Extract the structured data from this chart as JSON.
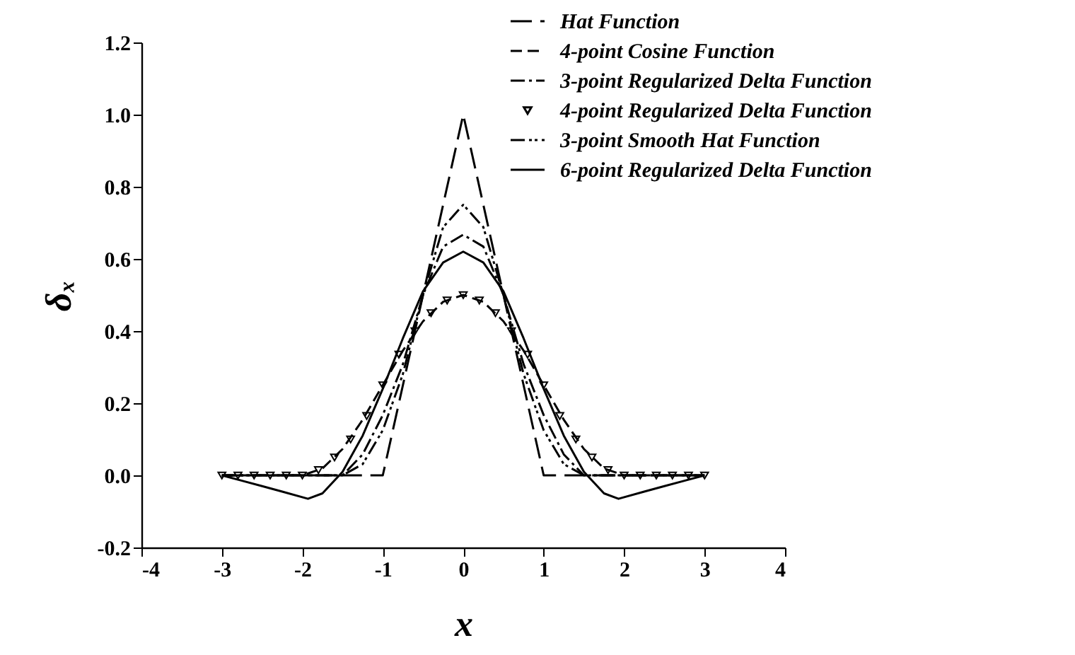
{
  "chart_data": {
    "type": "line",
    "xlabel": "x",
    "ylabel": "δₓ",
    "xlim": [
      -4,
      4
    ],
    "xticks": [
      -4,
      -3,
      -2,
      -1,
      0,
      1,
      2,
      3,
      4
    ],
    "ylim": [
      -0.2,
      1.2
    ],
    "yticks": [
      {
        "value": -0.2,
        "label": "-0.2"
      },
      {
        "value": 0,
        "label": "0.0"
      },
      {
        "value": 0.2,
        "label": "0.2"
      },
      {
        "value": 0.4,
        "label": "0.4"
      },
      {
        "value": 0.6,
        "label": "0.6"
      },
      {
        "value": 0.8,
        "label": "0.8"
      },
      {
        "value": 1,
        "label": "1.0"
      },
      {
        "value": 1.2,
        "label": "1.2"
      }
    ],
    "grid": false,
    "legend": "top right",
    "series": [
      {
        "name": "Hat Function",
        "color": "#000000",
        "line_style": "longdashed",
        "x": [
          -3,
          -1,
          0,
          1,
          3
        ],
        "values": [
          0,
          0,
          1,
          0,
          0
        ]
      },
      {
        "name": "4-point Cosine Function",
        "color": "#000000",
        "line_style": "dashed",
        "x": [
          -3,
          -2,
          -1.75,
          -1.5,
          -1.25,
          -1,
          -0.75,
          -0.5,
          -0.25,
          0,
          0.25,
          0.5,
          0.75,
          1,
          1.25,
          1.5,
          1.75,
          2,
          3
        ],
        "values": [
          0,
          0,
          0.019,
          0.073,
          0.154,
          0.25,
          0.346,
          0.427,
          0.481,
          0.5,
          0.481,
          0.427,
          0.346,
          0.25,
          0.154,
          0.073,
          0.019,
          0,
          0
        ]
      },
      {
        "name": "3-point Regularized Delta Function",
        "color": "#000000",
        "line_style": "dashdot",
        "x": [
          -3,
          -1.5,
          -1.25,
          -1,
          -0.75,
          -0.5,
          -0.25,
          0,
          0.25,
          0.5,
          0.75,
          1,
          1.25,
          1.5,
          3
        ],
        "values": [
          0,
          0,
          0.058,
          0.167,
          0.308,
          0.5,
          0.634,
          0.667,
          0.634,
          0.5,
          0.308,
          0.167,
          0.058,
          0,
          0
        ]
      },
      {
        "name": "4-point Regularized Delta Function",
        "color": "#000000",
        "type": "scatter",
        "marker": "triangle",
        "x": [
          -3,
          -2.8,
          -2.6,
          -2.4,
          -2.2,
          -2,
          -1.8,
          -1.6,
          -1.4,
          -1.2,
          -1,
          -0.8,
          -0.6,
          -0.4,
          -0.2,
          0,
          0.2,
          0.4,
          0.6,
          0.8,
          1,
          1.2,
          1.4,
          1.6,
          1.8,
          2,
          2.2,
          2.4,
          2.6,
          2.8,
          3
        ],
        "values": [
          0,
          0,
          0,
          0,
          0,
          0,
          0.015,
          0.05,
          0.1,
          0.165,
          0.25,
          0.335,
          0.4,
          0.45,
          0.485,
          0.5,
          0.485,
          0.45,
          0.4,
          0.335,
          0.25,
          0.165,
          0.1,
          0.05,
          0.015,
          0,
          0,
          0,
          0,
          0,
          0
        ]
      },
      {
        "name": "3-point Smooth Hat Function",
        "color": "#000000",
        "line_style": "dashdotdot",
        "x": [
          -3,
          -1.5,
          -1.25,
          -1,
          -0.75,
          -0.5,
          -0.25,
          0,
          0.25,
          0.5,
          0.75,
          1,
          1.25,
          1.5,
          3
        ],
        "values": [
          0,
          0,
          0.031,
          0.125,
          0.281,
          0.5,
          0.688,
          0.75,
          0.688,
          0.5,
          0.281,
          0.125,
          0.031,
          0,
          0
        ]
      },
      {
        "name": "6-point Regularized Delta Function",
        "color": "#000000",
        "line_style": "solid",
        "x": [
          -3,
          -2.75,
          -2.5,
          -2.25,
          -1.93,
          -1.75,
          -1.5,
          -1.25,
          -1,
          -0.75,
          -0.5,
          -0.25,
          0,
          0.25,
          0.5,
          0.75,
          1,
          1.25,
          1.5,
          1.75,
          1.93,
          2.25,
          2.5,
          2.75,
          3
        ],
        "values": [
          0,
          -0.015,
          -0.03,
          -0.045,
          -0.065,
          -0.05,
          0.01,
          0.11,
          0.24,
          0.38,
          0.51,
          0.59,
          0.62,
          0.59,
          0.51,
          0.38,
          0.24,
          0.11,
          0.01,
          -0.05,
          -0.065,
          -0.045,
          -0.03,
          -0.015,
          0
        ]
      }
    ]
  }
}
